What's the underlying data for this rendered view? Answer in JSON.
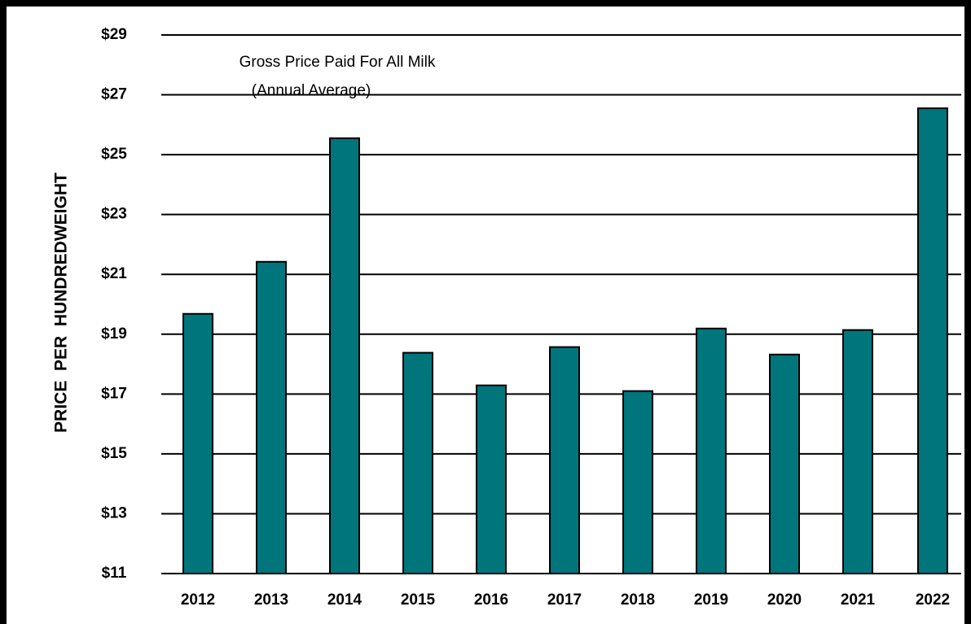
{
  "chart_data": {
    "type": "bar",
    "title": "Gross Price Paid For All Milk",
    "subtitle": "(Annual Average)",
    "y_label": "PRICE  PER  HUNDREDWEIGHT",
    "categories": [
      "2012",
      "2013",
      "2014",
      "2015",
      "2016",
      "2017",
      "2018",
      "2019",
      "2020",
      "2021",
      "2022"
    ],
    "values": [
      19.68,
      21.42,
      25.55,
      18.38,
      17.29,
      18.57,
      17.1,
      19.19,
      18.32,
      19.14,
      26.55
    ],
    "color": "#00757c",
    "ylim": [
      11,
      29
    ],
    "yticks": [
      {
        "value": 11,
        "label": "$11"
      },
      {
        "value": 13,
        "label": "$13"
      },
      {
        "value": 15,
        "label": "$15"
      },
      {
        "value": 17,
        "label": "$17"
      },
      {
        "value": 19,
        "label": "$19"
      },
      {
        "value": 21,
        "label": "$21"
      },
      {
        "value": 23,
        "label": "$23"
      },
      {
        "value": 25,
        "label": "$25"
      },
      {
        "value": 27,
        "label": "$27"
      },
      {
        "value": 29,
        "label": "$29"
      }
    ],
    "grid": true
  }
}
